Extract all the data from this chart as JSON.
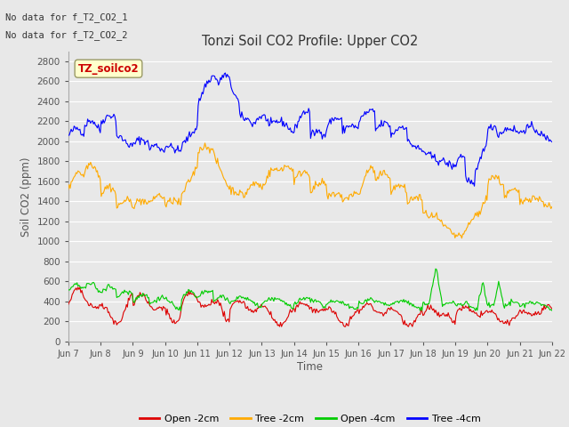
{
  "title": "Tonzi Soil CO2 Profile: Upper CO2",
  "ylabel": "Soil CO2 (ppm)",
  "xlabel": "Time",
  "annotation_line1": "No data for f_T2_CO2_1",
  "annotation_line2": "No data for f_T2_CO2_2",
  "legend_label": "TZ_soilco2",
  "ylim": [
    0,
    2900
  ],
  "yticks": [
    0,
    200,
    400,
    600,
    800,
    1000,
    1200,
    1400,
    1600,
    1800,
    2000,
    2200,
    2400,
    2600,
    2800
  ],
  "bg_color": "#e8e8e8",
  "series": {
    "open_2cm": {
      "color": "#dd0000",
      "label": "Open -2cm"
    },
    "tree_2cm": {
      "color": "#ffaa00",
      "label": "Tree -2cm"
    },
    "open_4cm": {
      "color": "#00cc00",
      "label": "Open -4cm"
    },
    "tree_4cm": {
      "color": "#0000ff",
      "label": "Tree -4cm"
    }
  },
  "n_points": 500,
  "x_start": 7,
  "x_end": 22,
  "xtick_positions": [
    7,
    8,
    9,
    10,
    11,
    12,
    13,
    14,
    15,
    16,
    17,
    18,
    19,
    20,
    21,
    22
  ],
  "xtick_labels": [
    "Jun 7",
    "Jun 8",
    "Jun 9",
    "Jun 10",
    "Jun 11",
    "Jun 12",
    "Jun 13",
    "Jun 14",
    "Jun 15",
    "Jun 16",
    "Jun 17",
    "Jun 18",
    "Jun 19",
    "Jun 20",
    "Jun 21",
    "Jun 22"
  ]
}
